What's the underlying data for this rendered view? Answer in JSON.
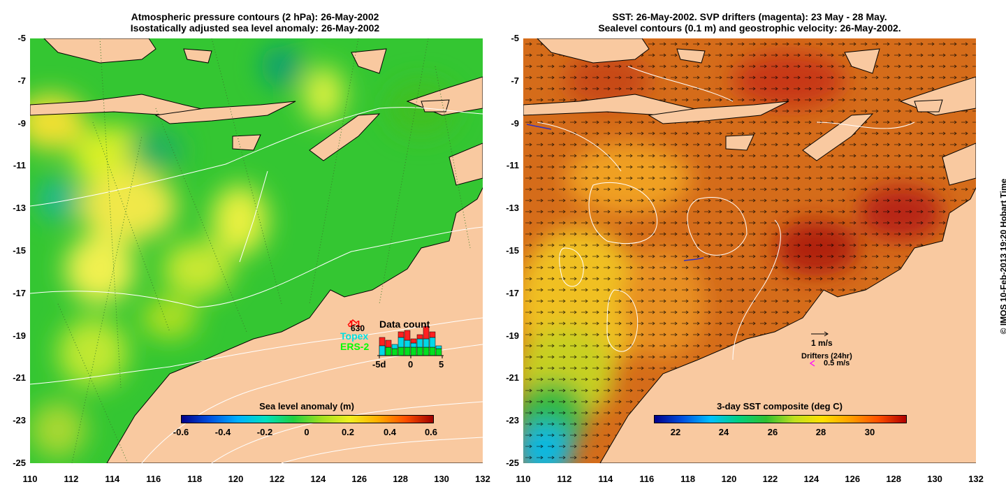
{
  "left_panel": {
    "title_line1": "Atmospheric pressure contours (2 hPa): 26-May-2002",
    "title_line2": "Isostatically adjusted sea level anomaly: 26-May-2002",
    "colorbar": {
      "title": "Sea level anomaly (m)",
      "ticks": [
        "-0.6",
        "-0.4",
        "-0.2",
        "0",
        "0.2",
        "0.4",
        "0.6"
      ],
      "colors": [
        "#00008b",
        "#0050e0",
        "#00b0ff",
        "#00e0c0",
        "#20d040",
        "#a0e020",
        "#f0f020",
        "#ffb000",
        "#ff5000",
        "#a00000"
      ]
    },
    "data_count": {
      "title": "Data count",
      "labels": [
        "J-1",
        "630",
        "Topex",
        "ERS-2"
      ],
      "label_colors": [
        "#ff0000",
        "#000000",
        "#00e0e0",
        "#00ff00"
      ],
      "axis_ticks": [
        "-5d",
        "0",
        "5"
      ]
    }
  },
  "right_panel": {
    "title_line1": "SST: 26-May-2002. SVP drifters (magenta): 23 May - 28 May.",
    "title_line2": "Sealevel contours (0.1 m) and geostrophic velocity: 26-May-2002.",
    "colorbar": {
      "title": "3-day SST composite (deg C)",
      "ticks": [
        "22",
        "24",
        "26",
        "28",
        "30"
      ],
      "colors": [
        "#00008b",
        "#0050e0",
        "#00c0ff",
        "#00d080",
        "#30c030",
        "#c0e020",
        "#ffe000",
        "#ffa000",
        "#ff5000",
        "#b00000"
      ]
    },
    "legend": {
      "velocity_label": "1 m/s",
      "drifters_label": "Drifters (24hr)",
      "drifter_speed_label": "0.5 m/s"
    }
  },
  "axes": {
    "y_ticks": [
      "-5",
      "-7",
      "-9",
      "-11",
      "-13",
      "-15",
      "-17",
      "-19",
      "-21",
      "-23",
      "-25"
    ],
    "x_ticks": [
      "110",
      "112",
      "114",
      "116",
      "118",
      "120",
      "122",
      "124",
      "126",
      "128",
      "130",
      "132"
    ]
  },
  "credit": "© IMOS 10-Feb-2013 19:20 Hobart Time",
  "colors": {
    "land": "#f9c9a0",
    "coast": "#000000",
    "sea_green": "#30c830",
    "sst_orange": "#d86a18"
  }
}
